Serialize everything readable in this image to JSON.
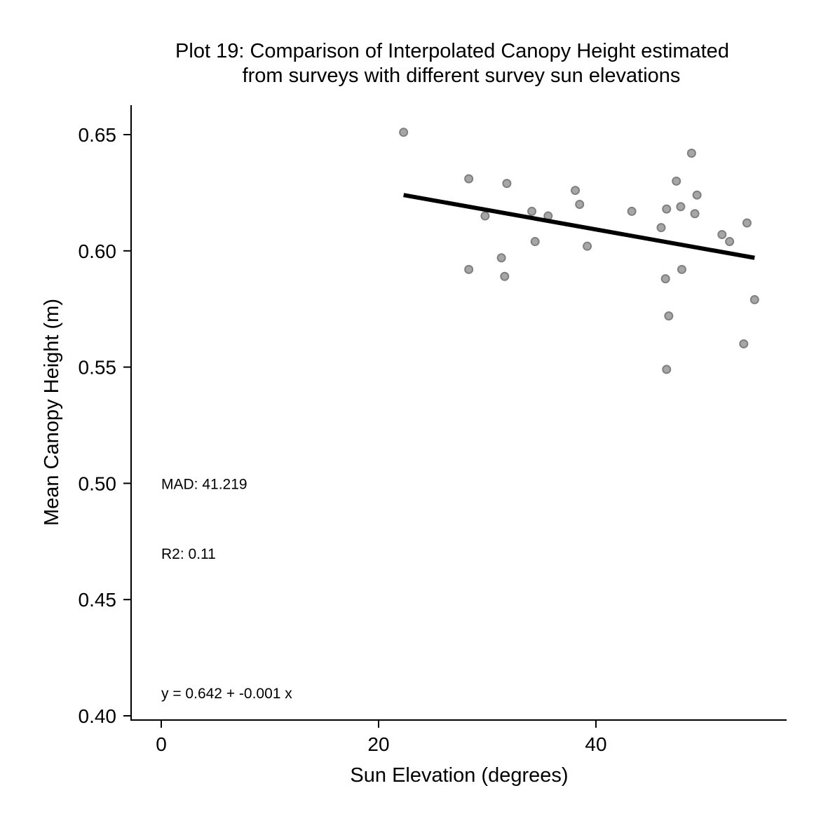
{
  "chart_data": {
    "type": "scatter",
    "title_lines": [
      "Plot 19: Comparison of Interpolated Canopy Height estimated",
      "from surveys with different survey sun elevations"
    ],
    "xlabel": "Sun Elevation (degrees)",
    "ylabel": "Mean Canopy Height (m)",
    "xlim": [
      -3.5,
      57
    ],
    "ylim": [
      0.398,
      0.663
    ],
    "xticks": [
      0,
      20,
      40
    ],
    "xtick_labels": [
      "0",
      "20",
      "40"
    ],
    "yticks": [
      0.4,
      0.45,
      0.5,
      0.55,
      0.6,
      0.65
    ],
    "ytick_labels": [
      "0.40",
      "0.45",
      "0.50",
      "0.55",
      "0.60",
      "0.65"
    ],
    "grid": false,
    "colors": {
      "points_fill": "#a6a6a6",
      "points_stroke": "#808080",
      "line": "#000000"
    },
    "points": [
      {
        "x": 22.3,
        "y": 0.651
      },
      {
        "x": 28.3,
        "y": 0.631
      },
      {
        "x": 28.3,
        "y": 0.592
      },
      {
        "x": 29.8,
        "y": 0.615
      },
      {
        "x": 31.3,
        "y": 0.597
      },
      {
        "x": 31.6,
        "y": 0.589
      },
      {
        "x": 31.8,
        "y": 0.629
      },
      {
        "x": 34.1,
        "y": 0.617
      },
      {
        "x": 34.4,
        "y": 0.604
      },
      {
        "x": 35.6,
        "y": 0.615
      },
      {
        "x": 38.1,
        "y": 0.626
      },
      {
        "x": 38.5,
        "y": 0.62
      },
      {
        "x": 39.2,
        "y": 0.602
      },
      {
        "x": 43.3,
        "y": 0.617
      },
      {
        "x": 46.0,
        "y": 0.61
      },
      {
        "x": 46.4,
        "y": 0.588
      },
      {
        "x": 46.5,
        "y": 0.618
      },
      {
        "x": 46.5,
        "y": 0.549
      },
      {
        "x": 46.7,
        "y": 0.572
      },
      {
        "x": 47.4,
        "y": 0.63
      },
      {
        "x": 47.8,
        "y": 0.619
      },
      {
        "x": 47.9,
        "y": 0.592
      },
      {
        "x": 48.8,
        "y": 0.642
      },
      {
        "x": 49.1,
        "y": 0.616
      },
      {
        "x": 49.3,
        "y": 0.624
      },
      {
        "x": 51.6,
        "y": 0.607
      },
      {
        "x": 52.3,
        "y": 0.604
      },
      {
        "x": 53.6,
        "y": 0.56
      },
      {
        "x": 53.9,
        "y": 0.612
      },
      {
        "x": 54.6,
        "y": 0.579
      }
    ],
    "regression_line": {
      "x": [
        22.3,
        54.6
      ],
      "y": [
        0.624,
        0.597
      ]
    },
    "annotations": [
      {
        "text": "MAD: 41.219",
        "x": 0,
        "y": 0.5
      },
      {
        "text": "R2: 0.11",
        "x": 0,
        "y": 0.47
      },
      {
        "text": "y =  0.642 + -0.001 x",
        "x": 0,
        "y": 0.41
      }
    ]
  }
}
